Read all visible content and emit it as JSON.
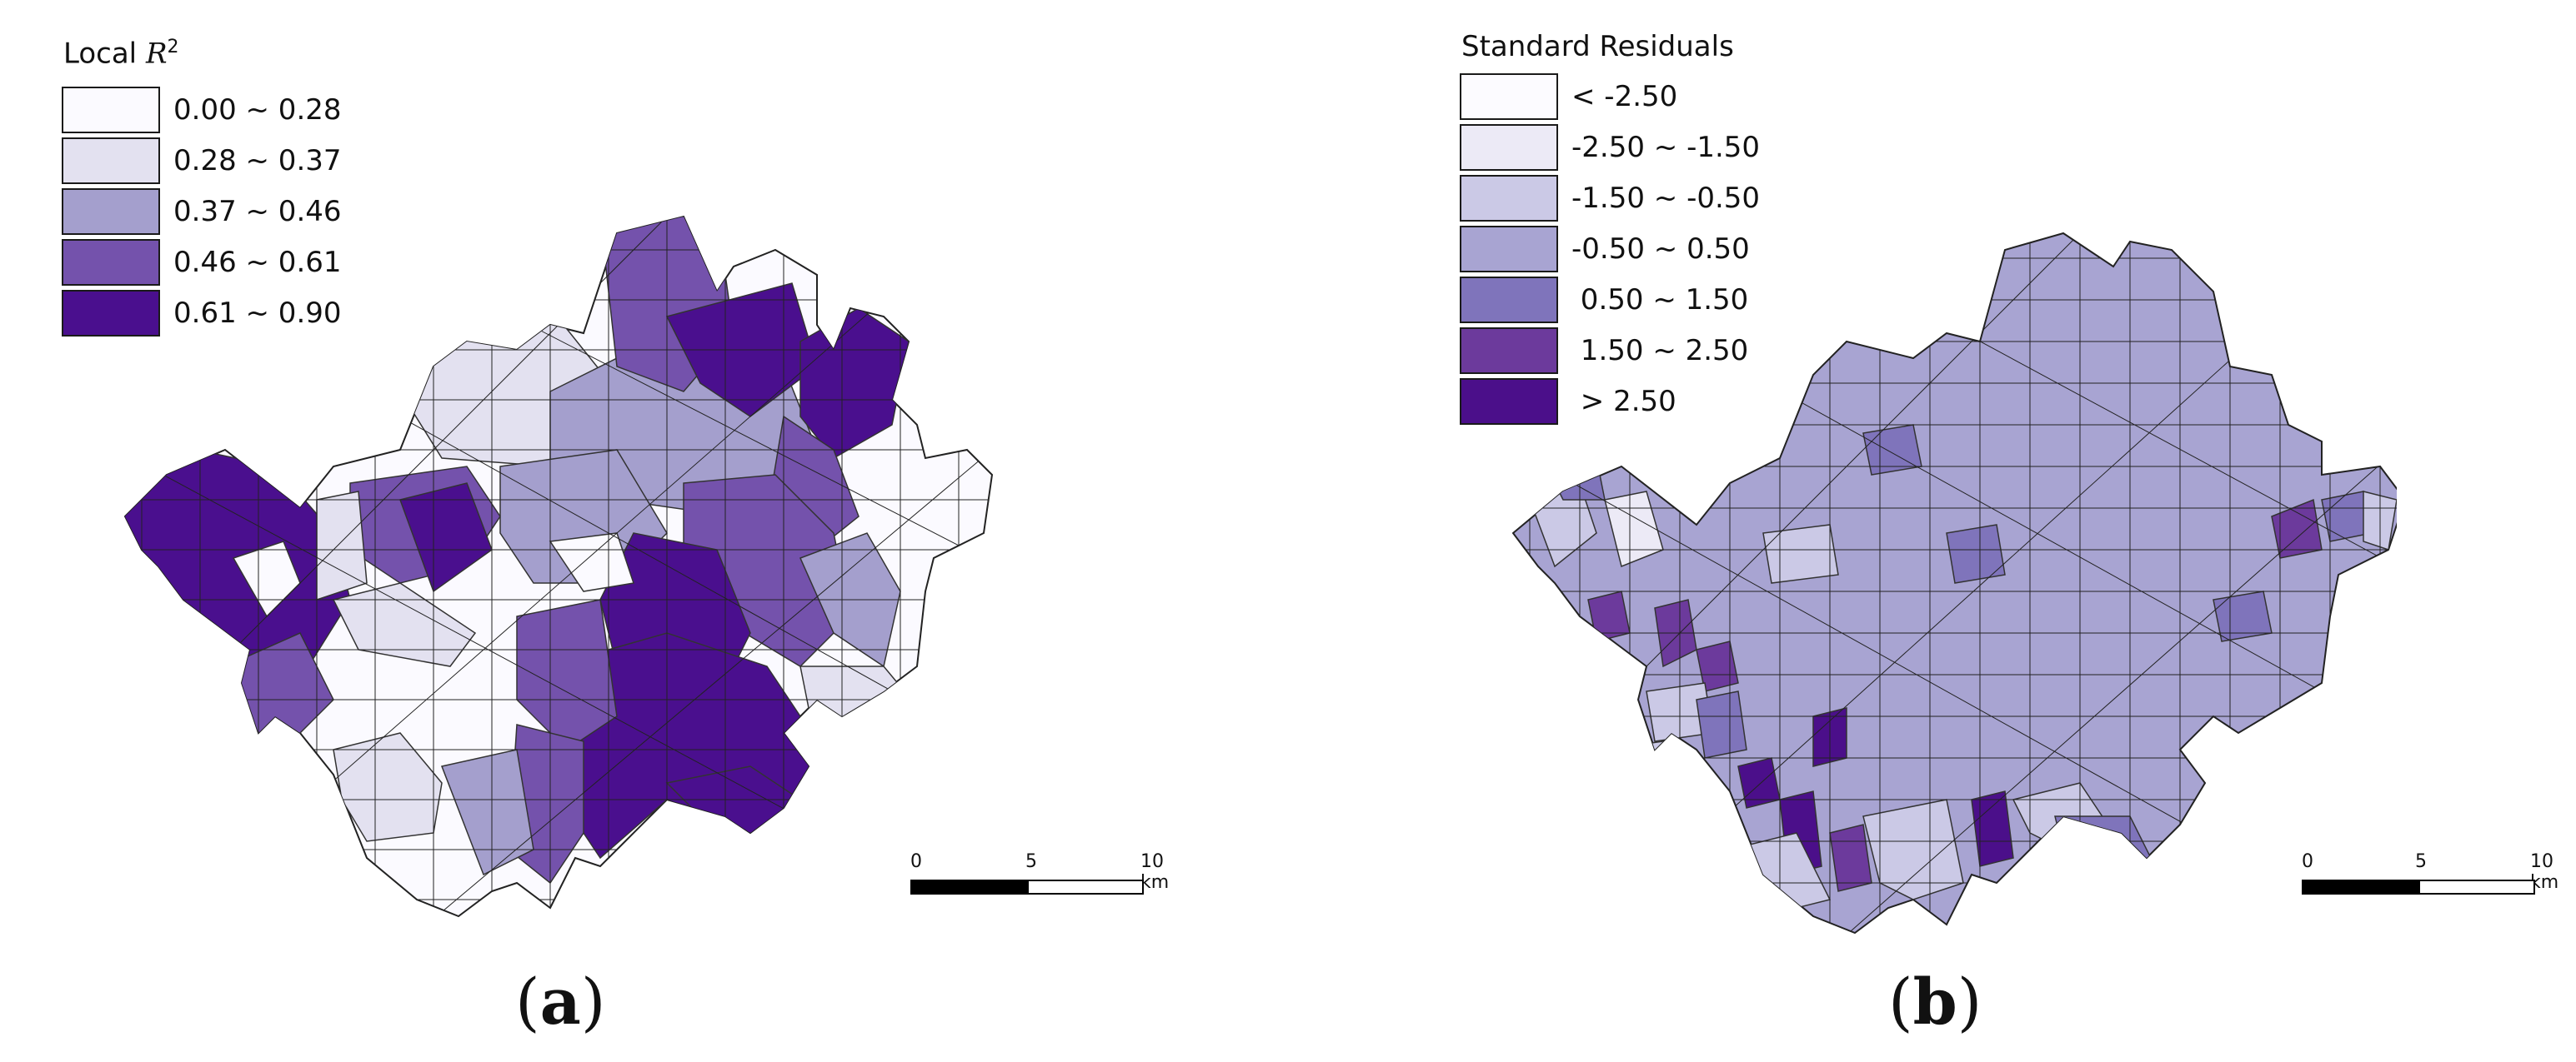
{
  "panels": [
    {
      "legend_title_text": "Local ",
      "legend_title_var": "R",
      "legend_title_sup": "2",
      "classes": [
        {
          "label": "0.00 ~ 0.28",
          "color": "#fbfaff"
        },
        {
          "label": "0.28 ~ 0.37",
          "color": "#e3e1f0"
        },
        {
          "label": "0.37 ~ 0.46",
          "color": "#a49fcd"
        },
        {
          "label": "0.46 ~ 0.61",
          "color": "#7452ac"
        },
        {
          "label": "0.61 ~ 0.90",
          "color": "#4a0f8e"
        }
      ],
      "scale": {
        "ticks": [
          "0",
          "5",
          "10 km"
        ]
      },
      "caption": {
        "open": "(",
        "letter": "a",
        "close": ")"
      }
    },
    {
      "legend_title_text": "Standard Residuals",
      "classes": [
        {
          "label": "< -2.50",
          "color": "#fcfbff"
        },
        {
          "label": "-2.50 ~ -1.50",
          "color": "#eceaf6"
        },
        {
          "label": "-1.50 ~ -0.50",
          "color": "#cbc9e6"
        },
        {
          "label": "-0.50 ~ 0.50",
          "color": "#a8a4d2"
        },
        {
          "label": " 0.50 ~ 1.50",
          "color": "#7f74bb"
        },
        {
          "label": " 1.50 ~ 2.50",
          "color": "#6c3a9c"
        },
        {
          "label": " > 2.50",
          "color": "#4b0f8a"
        }
      ],
      "scale": {
        "ticks": [
          "0",
          "5",
          "10 km"
        ]
      },
      "caption": {
        "open": "(",
        "letter": "b",
        "close": ")"
      }
    }
  ]
}
